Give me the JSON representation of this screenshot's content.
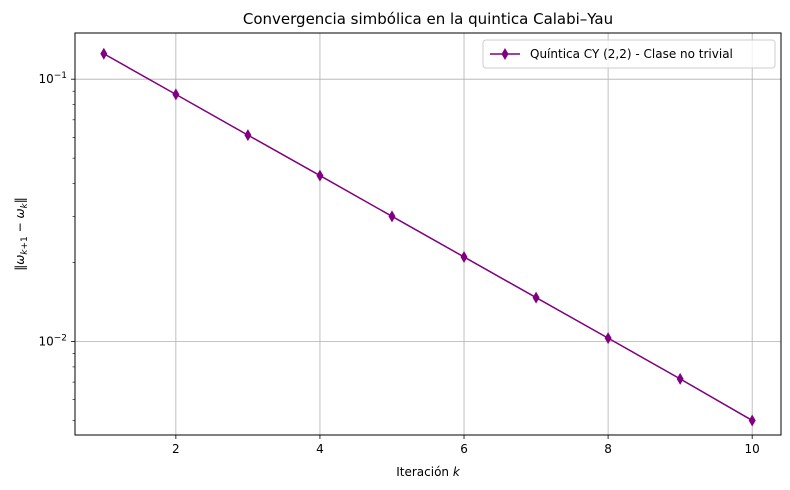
{
  "chart_data": {
    "type": "line",
    "title": "Convergencia simbólica en la quintica Calabi–Yau",
    "xlabel": "Iteración k",
    "ylabel": "‖ω_{k+1} − ω_k‖",
    "yscale": "log",
    "xlim": [
      0.6,
      10.4
    ],
    "ylim": [
      0.0044,
      0.15
    ],
    "x_ticks": [
      2,
      4,
      6,
      8,
      10
    ],
    "y_ticks": [
      {
        "value": 0.1,
        "base": "10",
        "exp": "−1"
      },
      {
        "value": 0.01,
        "base": "10",
        "exp": "−2"
      }
    ],
    "grid": true,
    "legend_position": "top-right",
    "series": [
      {
        "name": "Quíntica CY (2,2) - Clase no trivial",
        "color": "#800080",
        "marker": "thin-diamond",
        "x": [
          1,
          2,
          3,
          4,
          5,
          6,
          7,
          8,
          9,
          10
        ],
        "values": [
          0.125,
          0.0875,
          0.0612,
          0.0429,
          0.03,
          0.021,
          0.0147,
          0.0103,
          0.0072,
          0.005
        ]
      }
    ]
  }
}
